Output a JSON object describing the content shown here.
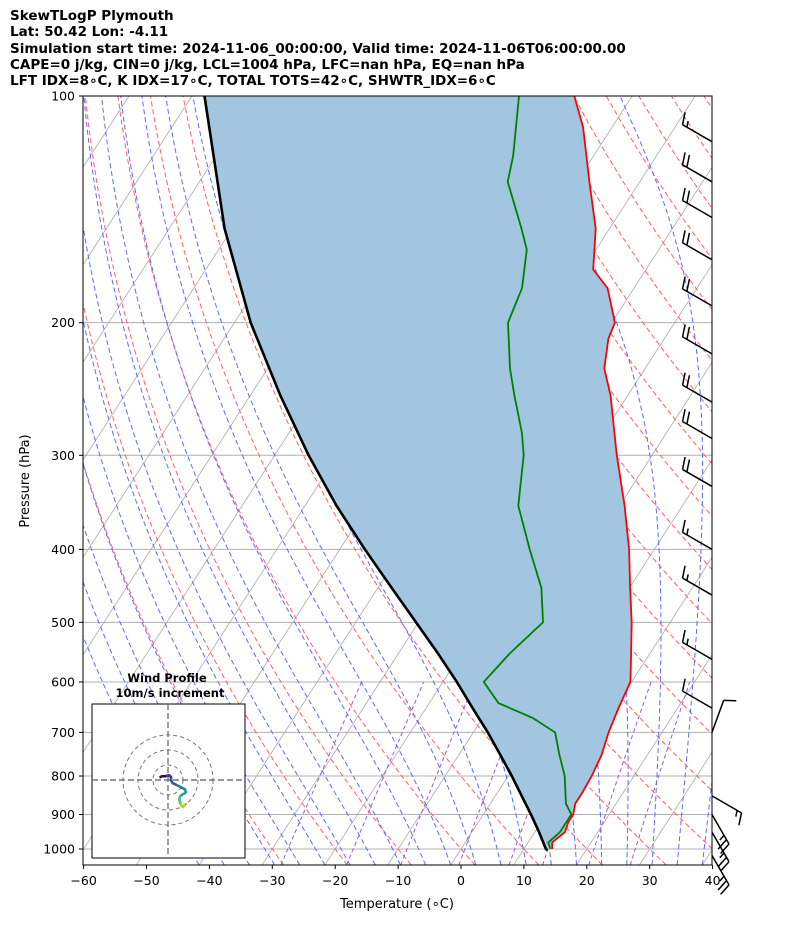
{
  "header": {
    "line1": "SkewTLogP Plymouth",
    "line2": "Lat: 50.42   Lon: -4.11",
    "line3": "Simulation start time: 2024-11-06_00:00:00, Valid time: 2024-11-06T06:00:00.00",
    "line4": "CAPE=0 j/kg, CIN=0 j/kg, LCL=1004 hPa, LFC=nan hPa, EQ=nan hPa",
    "line5": "LFT IDX=8∘C, K IDX=17∘C, TOTAL TOTS=42∘C, SHWTR_IDX=6∘C"
  },
  "colors": {
    "temperature": "#ff0000",
    "dewpoint": "#008000",
    "parcel": "#000000",
    "shade": "#a2c6df",
    "dry_adiabat": "#ff6060",
    "moist_adiabat": "#5a6cff",
    "mixing_ratio": "#9b59d0",
    "isotherm": "#aaaaaa"
  },
  "chart_data": [
    {
      "type": "line",
      "subtype": "skew-T log-P",
      "xlabel": "Temperature (∘C)",
      "ylabel": "Pressure (hPa)",
      "xlim": [
        -60,
        40
      ],
      "ylim": [
        1050,
        100
      ],
      "y_scale": "log",
      "x_ticks": [
        "−60",
        "−50",
        "−40",
        "−30",
        "−20",
        "−10",
        "0",
        "10",
        "20",
        "30",
        "40"
      ],
      "x_tick_values": [
        -60,
        -50,
        -40,
        -30,
        -20,
        -10,
        0,
        10,
        20,
        30,
        40
      ],
      "y_ticks": [
        "100",
        "200",
        "300",
        "400",
        "500",
        "600",
        "700",
        "800",
        "900",
        "1000"
      ],
      "y_tick_values": [
        100,
        200,
        300,
        400,
        500,
        600,
        700,
        800,
        900,
        1000
      ],
      "grid": true,
      "series": [
        {
          "role": "temperature",
          "points": [
            [
              1000,
              14.5
            ],
            [
              980,
              13.8
            ],
            [
              950,
              14.8
            ],
            [
              920,
              14.3
            ],
            [
              900,
              14.3
            ],
            [
              870,
              13.5
            ],
            [
              840,
              13.5
            ],
            [
              800,
              13.3
            ],
            [
              750,
              12.7
            ],
            [
              700,
              11.5
            ],
            [
              650,
              10.6
            ],
            [
              600,
              9.8
            ],
            [
              550,
              7.0
            ],
            [
              500,
              3.9
            ],
            [
              450,
              0.1
            ],
            [
              400,
              -4.0
            ],
            [
              350,
              -9.2
            ],
            [
              300,
              -15.6
            ],
            [
              280,
              -18.3
            ],
            [
              250,
              -22.7
            ],
            [
              230,
              -26.5
            ],
            [
              210,
              -28.9
            ],
            [
              200,
              -29.5
            ],
            [
              180,
              -34.2
            ],
            [
              170,
              -38.4
            ],
            [
              150,
              -42.2
            ],
            [
              130,
              -48.0
            ],
            [
              110,
              -54.6
            ],
            [
              100,
              -59.2
            ]
          ]
        },
        {
          "role": "dewpoint",
          "points": [
            [
              1000,
              14.2
            ],
            [
              980,
              13.2
            ],
            [
              950,
              14.0
            ],
            [
              900,
              14.0
            ],
            [
              870,
              12.0
            ],
            [
              800,
              9.0
            ],
            [
              750,
              6.0
            ],
            [
              700,
              3.0
            ],
            [
              670,
              -2.0
            ],
            [
              640,
              -9.0
            ],
            [
              600,
              -13.5
            ],
            [
              550,
              -12.3
            ],
            [
              500,
              -10.2
            ],
            [
              450,
              -14.0
            ],
            [
              400,
              -19.8
            ],
            [
              350,
              -26.1
            ],
            [
              320,
              -28.6
            ],
            [
              300,
              -30.4
            ],
            [
              280,
              -33.0
            ],
            [
              250,
              -38.0
            ],
            [
              230,
              -41.5
            ],
            [
              200,
              -46.5
            ],
            [
              180,
              -47.8
            ],
            [
              160,
              -51.0
            ],
            [
              150,
              -54.0
            ],
            [
              130,
              -61.0
            ],
            [
              120,
              -62.8
            ],
            [
              100,
              -68.0
            ]
          ]
        },
        {
          "role": "parcel",
          "points": [
            [
              1004,
              13.9
            ],
            [
              1000,
              13.5
            ],
            [
              950,
              10.7
            ],
            [
              900,
              7.6
            ],
            [
              850,
              4.2
            ],
            [
              800,
              0.6
            ],
            [
              750,
              -3.4
            ],
            [
              700,
              -7.7
            ],
            [
              650,
              -12.6
            ],
            [
              600,
              -17.8
            ],
            [
              550,
              -23.7
            ],
            [
              500,
              -30.4
            ],
            [
              450,
              -37.8
            ],
            [
              400,
              -46.0
            ],
            [
              350,
              -55.0
            ],
            [
              300,
              -64.6
            ],
            [
              250,
              -75.2
            ],
            [
              200,
              -87.4
            ],
            [
              150,
              -101.2
            ],
            [
              100,
              -118.0
            ]
          ]
        }
      ],
      "barbs": [
        {
          "p": 1020,
          "speed_kt": 25,
          "dir": 150
        },
        {
          "p": 950,
          "speed_kt": 25,
          "dir": 150
        },
        {
          "p": 900,
          "speed_kt": 25,
          "dir": 150
        },
        {
          "p": 850,
          "speed_kt": 15,
          "dir": 120
        },
        {
          "p": 700,
          "speed_kt": 10,
          "dir": 20
        },
        {
          "p": 650,
          "speed_kt": 10,
          "dir": 300
        },
        {
          "p": 560,
          "speed_kt": 15,
          "dir": 300
        },
        {
          "p": 460,
          "speed_kt": 15,
          "dir": 300
        },
        {
          "p": 400,
          "speed_kt": 15,
          "dir": 300
        },
        {
          "p": 330,
          "speed_kt": 20,
          "dir": 300
        },
        {
          "p": 285,
          "speed_kt": 20,
          "dir": 300
        },
        {
          "p": 255,
          "speed_kt": 20,
          "dir": 300
        },
        {
          "p": 220,
          "speed_kt": 20,
          "dir": 300
        },
        {
          "p": 190,
          "speed_kt": 20,
          "dir": 300
        },
        {
          "p": 165,
          "speed_kt": 20,
          "dir": 300
        },
        {
          "p": 145,
          "speed_kt": 20,
          "dir": 300
        },
        {
          "p": 130,
          "speed_kt": 20,
          "dir": 300
        },
        {
          "p": 115,
          "speed_kt": 15,
          "dir": 300
        }
      ]
    },
    {
      "type": "line",
      "subtype": "hodograph",
      "title": "Wind Profile",
      "subtitle": "10m/s increment",
      "rings_ms": [
        10,
        20,
        30
      ],
      "points_uv": [
        [
          12,
          -16
        ],
        [
          11,
          -17
        ],
        [
          10,
          -18
        ],
        [
          9,
          -17
        ],
        [
          8,
          -15
        ],
        [
          7.5,
          -13
        ],
        [
          8,
          -11
        ],
        [
          9,
          -10
        ],
        [
          11,
          -9
        ],
        [
          12,
          -8
        ],
        [
          11,
          -6
        ],
        [
          9,
          -5
        ],
        [
          7,
          -4
        ],
        [
          5,
          -3
        ],
        [
          3,
          -2
        ],
        [
          2,
          0
        ],
        [
          2,
          2
        ],
        [
          1,
          3
        ],
        [
          0,
          3
        ],
        [
          -2,
          2.5
        ],
        [
          -4,
          2.5
        ],
        [
          -5,
          2
        ]
      ]
    }
  ]
}
